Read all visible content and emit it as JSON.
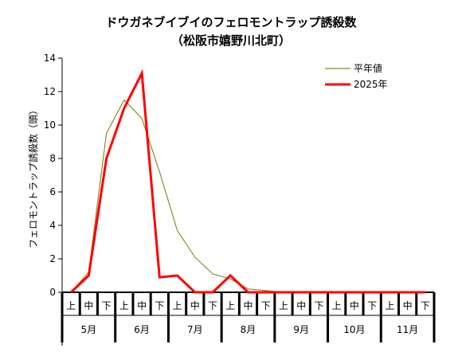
{
  "chart_data": {
    "type": "line",
    "title": "ドウガネブイブイのフェロモントラップ誘殺数",
    "subtitle": "（松阪市嬉野川北町）",
    "ylabel": "フェロモントラップ誘殺数（頭）",
    "xlabel": "",
    "ylim": [
      0,
      14
    ],
    "yticks": [
      "0",
      "2",
      "4",
      "6",
      "8",
      "10",
      "12",
      "14"
    ],
    "categories": [
      "上",
      "中",
      "下",
      "上",
      "中",
      "下",
      "上",
      "中",
      "下",
      "上",
      "中",
      "下",
      "上",
      "中",
      "下",
      "上",
      "中",
      "下",
      "上",
      "中",
      "下"
    ],
    "months": [
      "5月",
      "6月",
      "7月",
      "8月",
      "9月",
      "10月",
      "11月"
    ],
    "legend_position": "top-right",
    "grid": false,
    "series": [
      {
        "name": "平年値",
        "color": "#8B8B2A",
        "values": [
          0,
          1.2,
          9.5,
          11.5,
          10.4,
          7.2,
          3.7,
          2.1,
          1.1,
          0.8,
          0.2,
          0.1,
          0,
          0,
          0,
          0,
          0,
          0,
          0,
          0,
          0
        ]
      },
      {
        "name": "2025年",
        "color": "#ff0000",
        "values": [
          0,
          1,
          8,
          11,
          13.1,
          0.9,
          1,
          0,
          0,
          1,
          0,
          0,
          0,
          0,
          0,
          0,
          0,
          0,
          0,
          0,
          0
        ]
      }
    ]
  }
}
